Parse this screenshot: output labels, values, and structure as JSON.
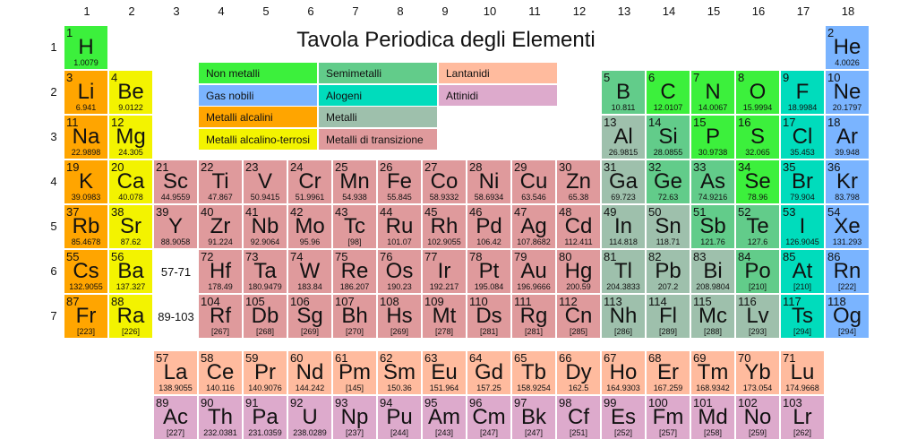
{
  "title": "Tavola Periodica degli Elementi",
  "group_labels": [
    "1",
    "2",
    "3",
    "4",
    "5",
    "6",
    "7",
    "8",
    "9",
    "10",
    "11",
    "12",
    "13",
    "14",
    "15",
    "16",
    "17",
    "18"
  ],
  "period_labels": [
    "1",
    "2",
    "3",
    "4",
    "5",
    "6",
    "7"
  ],
  "placeholders": {
    "lanthanides": "57-71",
    "actinides": "89-103"
  },
  "categories": {
    "n": {
      "label": "Non metalli",
      "color": "#3cf03c"
    },
    "g": {
      "label": "Gas nobili",
      "color": "#7ab4ff"
    },
    "a": {
      "label": "Metalli alcalini",
      "color": "#ffa500"
    },
    "e": {
      "label": "Metalli alcalino-terrosi",
      "color": "#f3f300"
    },
    "m": {
      "label": "Semimetalli",
      "color": "#62cc8a"
    },
    "h": {
      "label": "Alogeni",
      "color": "#00dcbc"
    },
    "p": {
      "label": "Metalli",
      "color": "#9ec0ac"
    },
    "t": {
      "label": "Metalli di transizione",
      "color": "#df9a9c"
    },
    "l": {
      "label": "Lantanidi",
      "color": "#ffbb9e"
    },
    "c": {
      "label": "Attinidi",
      "color": "#ddaacc"
    }
  },
  "elements": [
    [
      1,
      "H",
      "1.0079",
      "n"
    ],
    [
      2,
      "He",
      "4.0026",
      "g"
    ],
    [
      3,
      "Li",
      "6.941",
      "a"
    ],
    [
      4,
      "Be",
      "9.0122",
      "e"
    ],
    [
      5,
      "B",
      "10.811",
      "m"
    ],
    [
      6,
      "C",
      "12.0107",
      "n"
    ],
    [
      7,
      "N",
      "14.0067",
      "n"
    ],
    [
      8,
      "O",
      "15.9994",
      "n"
    ],
    [
      9,
      "F",
      "18.9984",
      "h"
    ],
    [
      10,
      "Ne",
      "20.1797",
      "g"
    ],
    [
      11,
      "Na",
      "22.9898",
      "a"
    ],
    [
      12,
      "Mg",
      "24.305",
      "e"
    ],
    [
      13,
      "Al",
      "26.9815",
      "p"
    ],
    [
      14,
      "Si",
      "28.0855",
      "m"
    ],
    [
      15,
      "P",
      "30.9738",
      "n"
    ],
    [
      16,
      "S",
      "32.065",
      "n"
    ],
    [
      17,
      "Cl",
      "35.453",
      "h"
    ],
    [
      18,
      "Ar",
      "39.948",
      "g"
    ],
    [
      19,
      "K",
      "39.0983",
      "a"
    ],
    [
      20,
      "Ca",
      "40.078",
      "e"
    ],
    [
      21,
      "Sc",
      "44.9559",
      "t"
    ],
    [
      22,
      "Ti",
      "47.867",
      "t"
    ],
    [
      23,
      "V",
      "50.9415",
      "t"
    ],
    [
      24,
      "Cr",
      "51.9961",
      "t"
    ],
    [
      25,
      "Mn",
      "54.938",
      "t"
    ],
    [
      26,
      "Fe",
      "55.845",
      "t"
    ],
    [
      27,
      "Co",
      "58.9332",
      "t"
    ],
    [
      28,
      "Ni",
      "58.6934",
      "t"
    ],
    [
      29,
      "Cu",
      "63.546",
      "t"
    ],
    [
      30,
      "Zn",
      "65.38",
      "t"
    ],
    [
      31,
      "Ga",
      "69.723",
      "p"
    ],
    [
      32,
      "Ge",
      "72.63",
      "m"
    ],
    [
      33,
      "As",
      "74.9216",
      "m"
    ],
    [
      34,
      "Se",
      "78.96",
      "n"
    ],
    [
      35,
      "Br",
      "79.904",
      "h"
    ],
    [
      36,
      "Kr",
      "83.798",
      "g"
    ],
    [
      37,
      "Rb",
      "85.4678",
      "a"
    ],
    [
      38,
      "Sr",
      "87.62",
      "e"
    ],
    [
      39,
      "Y",
      "88.9058",
      "t"
    ],
    [
      40,
      "Zr",
      "91.224",
      "t"
    ],
    [
      41,
      "Nb",
      "92.9064",
      "t"
    ],
    [
      42,
      "Mo",
      "95.96",
      "t"
    ],
    [
      43,
      "Tc",
      "[98]",
      "t"
    ],
    [
      44,
      "Ru",
      "101.07",
      "t"
    ],
    [
      45,
      "Rh",
      "102.9055",
      "t"
    ],
    [
      46,
      "Pd",
      "106.42",
      "t"
    ],
    [
      47,
      "Ag",
      "107.8682",
      "t"
    ],
    [
      48,
      "Cd",
      "112.411",
      "t"
    ],
    [
      49,
      "In",
      "114.818",
      "p"
    ],
    [
      50,
      "Sn",
      "118.71",
      "p"
    ],
    [
      51,
      "Sb",
      "121.76",
      "m"
    ],
    [
      52,
      "Te",
      "127.6",
      "m"
    ],
    [
      53,
      "I",
      "126.9045",
      "h"
    ],
    [
      54,
      "Xe",
      "131.293",
      "g"
    ],
    [
      55,
      "Cs",
      "132.9055",
      "a"
    ],
    [
      56,
      "Ba",
      "137.327",
      "e"
    ],
    [
      57,
      "La",
      "138.9055",
      "l"
    ],
    [
      58,
      "Ce",
      "140.116",
      "l"
    ],
    [
      59,
      "Pr",
      "140.9076",
      "l"
    ],
    [
      60,
      "Nd",
      "144.242",
      "l"
    ],
    [
      61,
      "Pm",
      "[145]",
      "l"
    ],
    [
      62,
      "Sm",
      "150.36",
      "l"
    ],
    [
      63,
      "Eu",
      "151.964",
      "l"
    ],
    [
      64,
      "Gd",
      "157.25",
      "l"
    ],
    [
      65,
      "Tb",
      "158.9254",
      "l"
    ],
    [
      66,
      "Dy",
      "162.5",
      "l"
    ],
    [
      67,
      "Ho",
      "164.9303",
      "l"
    ],
    [
      68,
      "Er",
      "167.259",
      "l"
    ],
    [
      69,
      "Tm",
      "168.9342",
      "l"
    ],
    [
      70,
      "Yb",
      "173.054",
      "l"
    ],
    [
      71,
      "Lu",
      "174.9668",
      "l"
    ],
    [
      72,
      "Hf",
      "178.49",
      "t"
    ],
    [
      73,
      "Ta",
      "180.9479",
      "t"
    ],
    [
      74,
      "W",
      "183.84",
      "t"
    ],
    [
      75,
      "Re",
      "186.207",
      "t"
    ],
    [
      76,
      "Os",
      "190.23",
      "t"
    ],
    [
      77,
      "Ir",
      "192.217",
      "t"
    ],
    [
      78,
      "Pt",
      "195.084",
      "t"
    ],
    [
      79,
      "Au",
      "196.9666",
      "t"
    ],
    [
      80,
      "Hg",
      "200.59",
      "t"
    ],
    [
      81,
      "Tl",
      "204.3833",
      "p"
    ],
    [
      82,
      "Pb",
      "207.2",
      "p"
    ],
    [
      83,
      "Bi",
      "208.9804",
      "p"
    ],
    [
      84,
      "Po",
      "[210]",
      "m"
    ],
    [
      85,
      "At",
      "[210]",
      "h"
    ],
    [
      86,
      "Rn",
      "[222]",
      "g"
    ],
    [
      87,
      "Fr",
      "[223]",
      "a"
    ],
    [
      88,
      "Ra",
      "[226]",
      "e"
    ],
    [
      89,
      "Ac",
      "[227]",
      "c"
    ],
    [
      90,
      "Th",
      "232.0381",
      "c"
    ],
    [
      91,
      "Pa",
      "231.0359",
      "c"
    ],
    [
      92,
      "U",
      "238.0289",
      "c"
    ],
    [
      93,
      "Np",
      "[237]",
      "c"
    ],
    [
      94,
      "Pu",
      "[244]",
      "c"
    ],
    [
      95,
      "Am",
      "[243]",
      "c"
    ],
    [
      96,
      "Cm",
      "[247]",
      "c"
    ],
    [
      97,
      "Bk",
      "[247]",
      "c"
    ],
    [
      98,
      "Cf",
      "[251]",
      "c"
    ],
    [
      99,
      "Es",
      "[252]",
      "c"
    ],
    [
      100,
      "Fm",
      "[257]",
      "c"
    ],
    [
      101,
      "Md",
      "[258]",
      "c"
    ],
    [
      102,
      "No",
      "[259]",
      "c"
    ],
    [
      103,
      "Lr",
      "[262]",
      "c"
    ],
    [
      104,
      "Rf",
      "[267]",
      "t"
    ],
    [
      105,
      "Db",
      "[268]",
      "t"
    ],
    [
      106,
      "Sg",
      "[269]",
      "t"
    ],
    [
      107,
      "Bh",
      "[270]",
      "t"
    ],
    [
      108,
      "Hs",
      "[269]",
      "t"
    ],
    [
      109,
      "Mt",
      "[278]",
      "t"
    ],
    [
      110,
      "Ds",
      "[281]",
      "t"
    ],
    [
      111,
      "Rg",
      "[281]",
      "t"
    ],
    [
      112,
      "Cn",
      "[285]",
      "t"
    ],
    [
      113,
      "Nh",
      "[286]",
      "p"
    ],
    [
      114,
      "Fl",
      "[289]",
      "p"
    ],
    [
      115,
      "Mc",
      "[288]",
      "p"
    ],
    [
      116,
      "Lv",
      "[293]",
      "p"
    ],
    [
      117,
      "Ts",
      "[294]",
      "h"
    ],
    [
      118,
      "Og",
      "[294]",
      "g"
    ]
  ]
}
